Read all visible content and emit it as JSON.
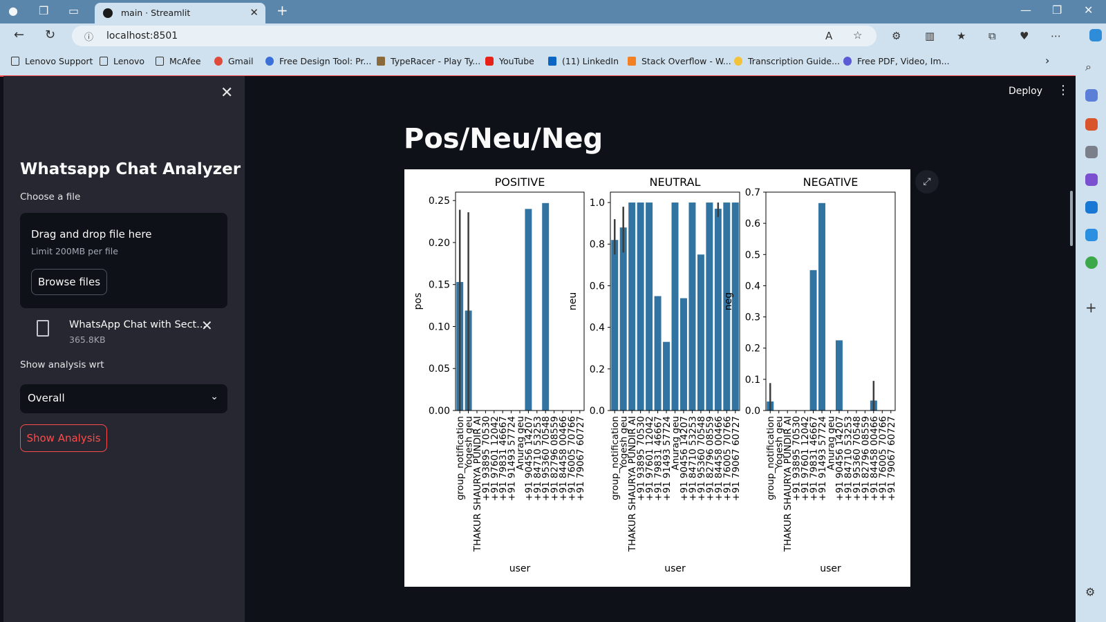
{
  "browser": {
    "tab_title": "main · Streamlit",
    "url": "localhost:8501",
    "bookmarks": [
      "Lenovo Support",
      "Lenovo",
      "McAfee",
      "Gmail",
      "Free Design Tool: Pr...",
      "TypeRacer - Play Ty...",
      "YouTube",
      "(11) LinkedIn",
      "Stack Overflow - W...",
      "Transcription Guide...",
      "Free PDF, Video, Im..."
    ]
  },
  "sidebar": {
    "title": "Whatsapp Chat Analyzer",
    "file_label": "Choose a file",
    "dropzone_title": "Drag and drop file here",
    "dropzone_limit": "Limit 200MB per file",
    "browse_label": "Browse files",
    "file_name": "WhatsApp Chat with Sect...",
    "file_size": "365.8KB",
    "select_label": "Show analysis wrt",
    "select_value": "Overall",
    "button_label": "Show Analysis"
  },
  "header": {
    "deploy_label": "Deploy"
  },
  "main": {
    "title": "Pos/Neu/Neg"
  },
  "chart_data": [
    {
      "type": "bar",
      "title": "POSITIVE",
      "xlabel": "user",
      "ylabel": "pos",
      "ylim": [
        0,
        0.26
      ],
      "yticks": [
        0.0,
        0.05,
        0.1,
        0.15,
        0.2,
        0.25
      ],
      "ytick_labels": [
        "0.00",
        "0.05",
        "0.10",
        "0.15",
        "0.20",
        "0.25"
      ],
      "categories": [
        "group_notification",
        "Yogesh geu",
        "THAKUR SHAURYA PUNDIR AI",
        "+91 93895 70530",
        "+91 97601 12042",
        "+91 79831 46667",
        "+91 91493 57724",
        "Anurag geu",
        "+91 90456 14207",
        "+91 84710 53253",
        "+91 95360 70548",
        "+91 82796 08559",
        "+91 84458 00466",
        "+91 76005 70766",
        "+91 79067 60727"
      ],
      "values": [
        0.153,
        0.119,
        0,
        0,
        0,
        0,
        0,
        0,
        0.24,
        0,
        0.247,
        0,
        0,
        0,
        0
      ],
      "error_bars": [
        [
          0.0,
          0.239
        ],
        [
          0.0,
          0.236
        ],
        null,
        null,
        null,
        null,
        null,
        null,
        null,
        null,
        null,
        null,
        null,
        null,
        null
      ]
    },
    {
      "type": "bar",
      "title": "NEUTRAL",
      "xlabel": "user",
      "ylabel": "neu",
      "ylim": [
        0,
        1.05
      ],
      "yticks": [
        0.0,
        0.2,
        0.4,
        0.6,
        0.8,
        1.0
      ],
      "ytick_labels": [
        "0.0",
        "0.2",
        "0.4",
        "0.6",
        "0.8",
        "1.0"
      ],
      "categories": [
        "group_notification",
        "Yogesh geu",
        "THAKUR SHAURYA PUNDIR AI",
        "+91 93895 70530",
        "+91 97601 12042",
        "+91 79831 46667",
        "+91 91493 57724",
        "Anurag geu",
        "+91 90456 14207",
        "+91 84710 53253",
        "+91 95360 70548",
        "+91 82796 08559",
        "+91 84458 00466",
        "+91 76005 70766",
        "+91 79067 60727"
      ],
      "values": [
        0.82,
        0.88,
        1.0,
        1.0,
        1.0,
        0.55,
        0.33,
        1.0,
        0.54,
        1.0,
        0.75,
        1.0,
        0.97,
        1.0,
        1.0
      ],
      "error_bars": [
        [
          0.75,
          0.92
        ],
        [
          0.76,
          0.98
        ],
        null,
        null,
        null,
        null,
        null,
        null,
        null,
        null,
        null,
        null,
        [
          0.93,
          1.0
        ],
        null,
        null
      ]
    },
    {
      "type": "bar",
      "title": "NEGATIVE",
      "xlabel": "user",
      "ylabel": "neg",
      "ylim": [
        0,
        0.7
      ],
      "yticks": [
        0.0,
        0.1,
        0.2,
        0.3,
        0.4,
        0.5,
        0.6,
        0.7
      ],
      "ytick_labels": [
        "0.0",
        "0.1",
        "0.2",
        "0.3",
        "0.4",
        "0.5",
        "0.6",
        "0.7"
      ],
      "categories": [
        "group_notification",
        "Yogesh geu",
        "THAKUR SHAURYA PUNDIR AI",
        "+91 93895 70530",
        "+91 97601 12042",
        "+91 79831 46667",
        "+91 91493 57724",
        "Anurag geu",
        "+91 90456 14207",
        "+91 84710 53253",
        "+91 95360 70548",
        "+91 82796 08559",
        "+91 84458 00466",
        "+91 76005 70766",
        "+91 79067 60727"
      ],
      "values": [
        0.029,
        0,
        0,
        0,
        0,
        0.45,
        0.665,
        0,
        0.225,
        0,
        0,
        0,
        0.032,
        0,
        0
      ],
      "error_bars": [
        [
          0.0,
          0.088
        ],
        null,
        null,
        null,
        null,
        null,
        null,
        null,
        null,
        null,
        null,
        null,
        [
          0.0,
          0.095
        ],
        null,
        null
      ]
    }
  ]
}
